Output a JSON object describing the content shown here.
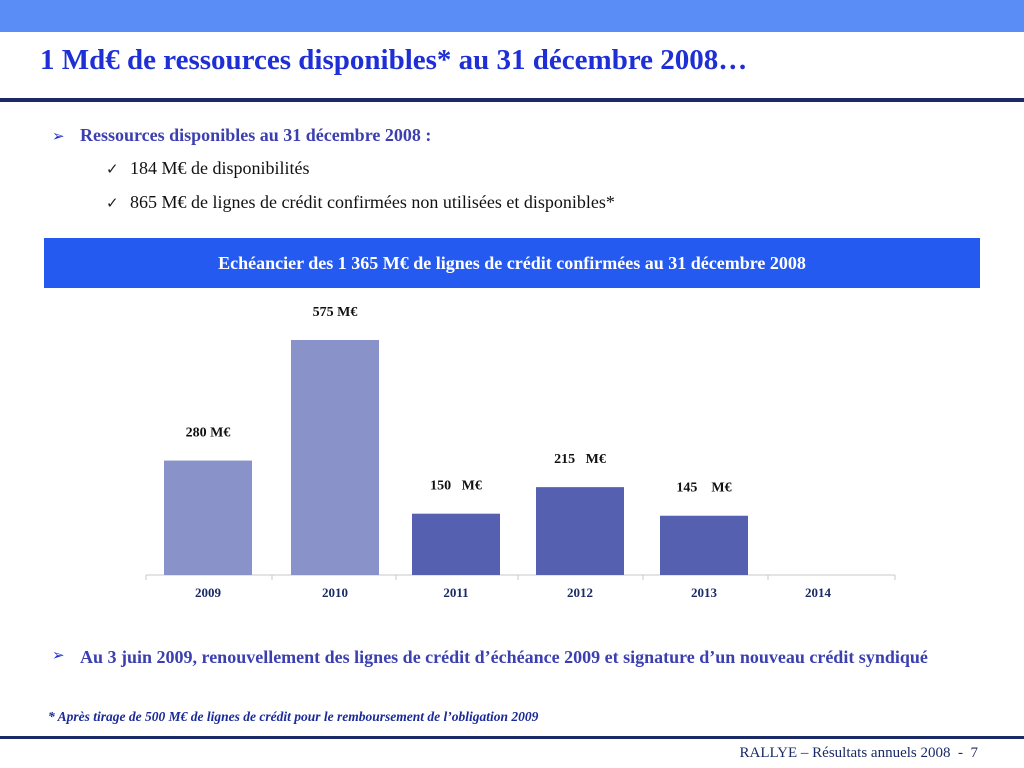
{
  "title": "1 Md€ de ressources disponibles* au 31 décembre 2008…",
  "bullets": {
    "main": "Ressources disponibles au 31 décembre 2008 :",
    "sub1": "184 M€ de disponibilités",
    "sub2": "865 M€ de lignes de crédit confirmées non utilisées et disponibles*"
  },
  "chart_header": "Echéancier des 1 365 M€ de lignes de crédit confirmées au 31 décembre 2008",
  "chart_data": {
    "type": "bar",
    "categories": [
      "2009",
      "2010",
      "2011",
      "2012",
      "2013",
      "2014"
    ],
    "values": [
      280,
      575,
      150,
      215,
      145,
      null
    ],
    "data_labels": [
      "280 M€",
      "575 M€",
      "150   M€",
      "215   M€",
      "145    M€",
      ""
    ],
    "colors": [
      "#8a93c9",
      "#8a93c9",
      "#5561b0",
      "#5561b0",
      "#5561b0",
      "#5561b0"
    ],
    "xlabel": "",
    "ylabel": "",
    "grid": false
  },
  "bottom_bullet": "Au 3 juin 2009, renouvellement des lignes de crédit d’échéance 2009 et signature d’un nouveau crédit syndiqué",
  "footnote": "* Après tirage de 500 M€ de lignes de crédit pour le remboursement de l’obligation 2009",
  "footer": "RALLYE – Résultats annuels 2008  -  7"
}
